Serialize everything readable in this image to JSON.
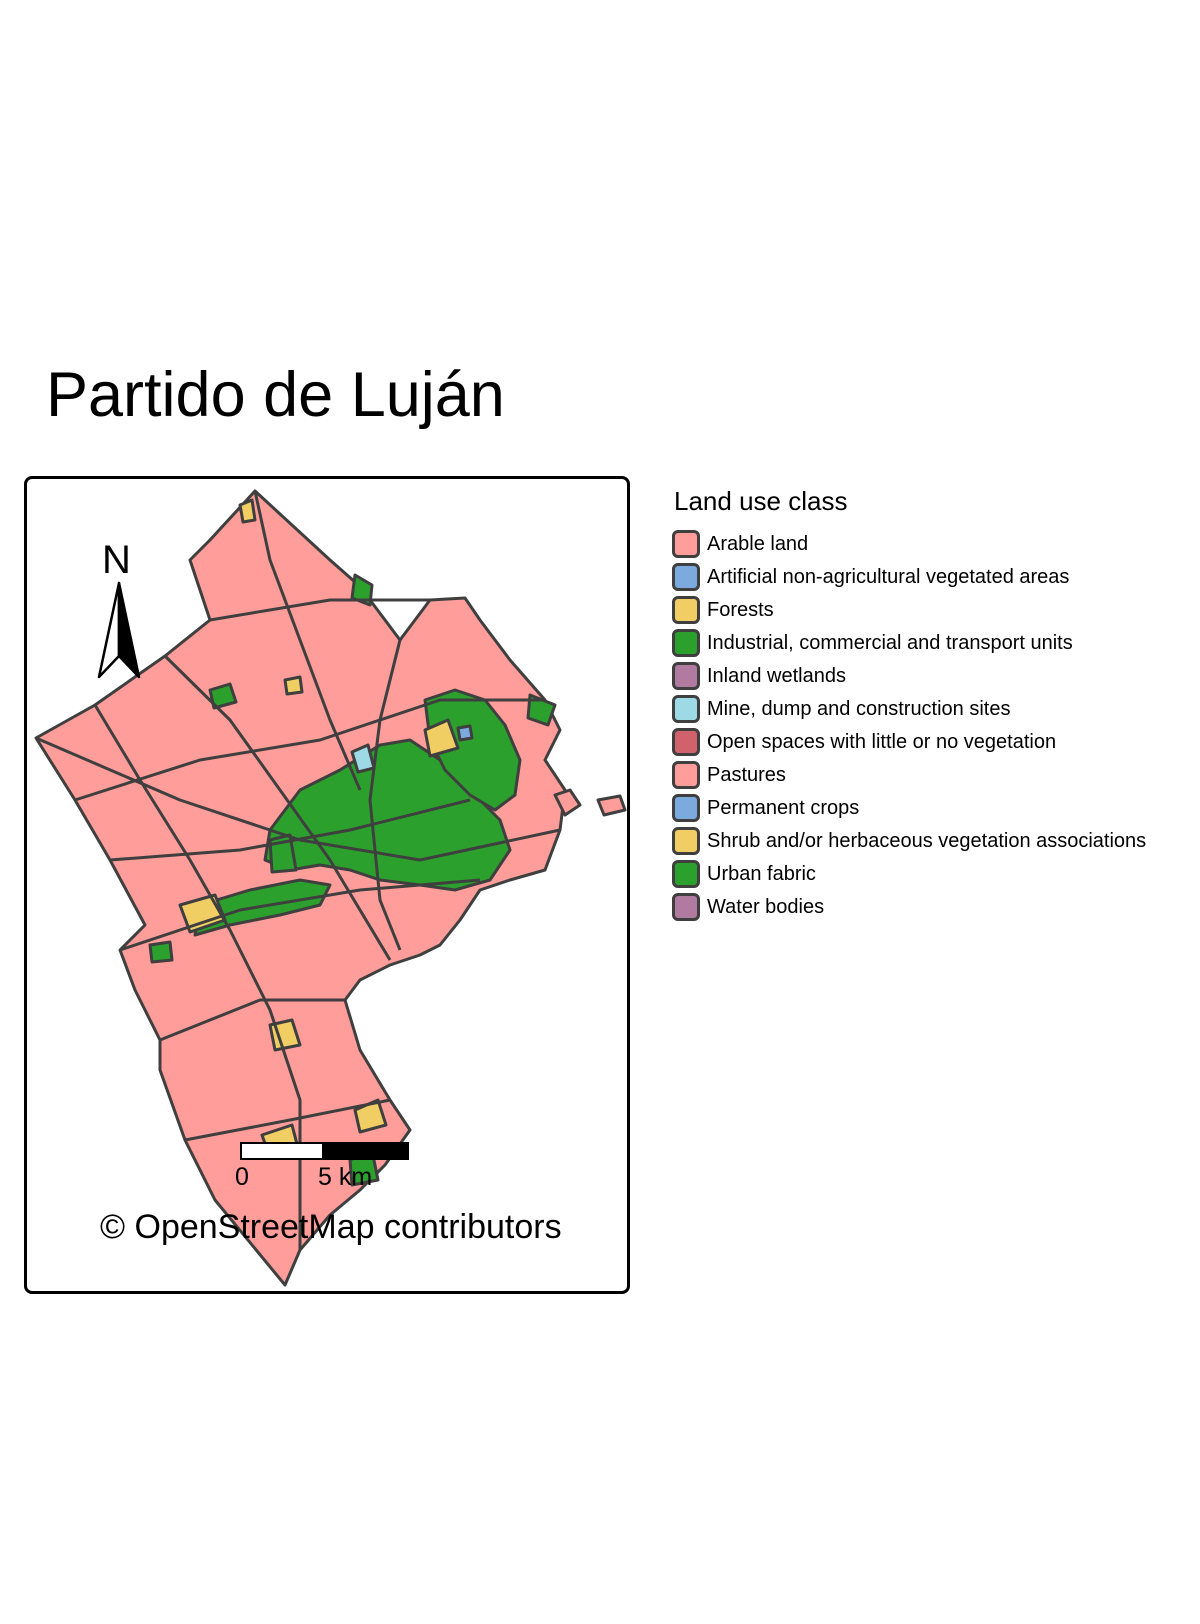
{
  "title": "Partido de Luján",
  "north_label": "N",
  "scale_bar": {
    "ticks": [
      "0",
      "5 km"
    ]
  },
  "attribution": "© OpenStreetMap contributors",
  "legend": {
    "title": "Land use class",
    "items": [
      {
        "label": "Arable land",
        "color": "#ff9d9a"
      },
      {
        "label": "Artificial non-agricultural vegetated areas",
        "color": "#7aaade"
      },
      {
        "label": "Forests",
        "color": "#f1ce63"
      },
      {
        "label": "Industrial, commercial and transport units",
        "color": "#2ca02c"
      },
      {
        "label": "Inland wetlands",
        "color": "#b07aa1"
      },
      {
        "label": "Mine, dump and construction sites",
        "color": "#9edae5"
      },
      {
        "label": "Open spaces with little or no vegetation",
        "color": "#d1616b"
      },
      {
        "label": "Pastures",
        "color": "#ff9d9a"
      },
      {
        "label": "Permanent crops",
        "color": "#7aaade"
      },
      {
        "label": "Shrub and/or herbaceous vegetation associations",
        "color": "#f1ce63"
      },
      {
        "label": "Urban fabric",
        "color": "#2ca02c"
      },
      {
        "label": "Water bodies",
        "color": "#b07aa1"
      }
    ]
  }
}
